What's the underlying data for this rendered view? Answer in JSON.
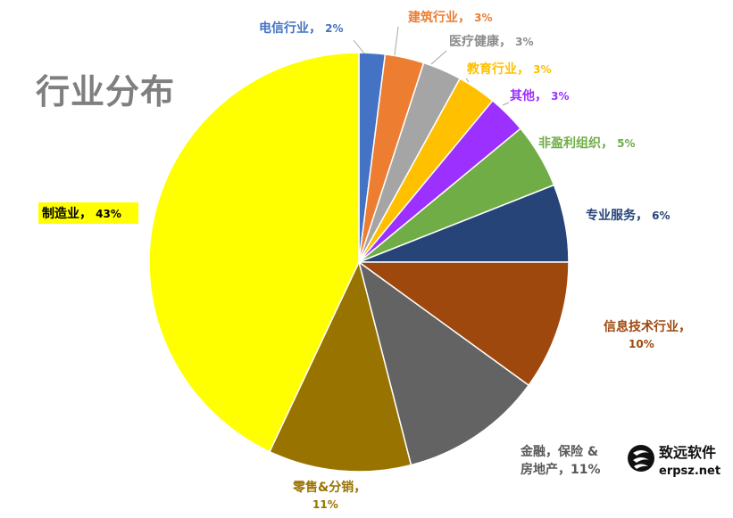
{
  "chart_data": {
    "type": "pie",
    "title": "行业分布",
    "start_angle": 0,
    "direction": "clockwise",
    "slices": [
      {
        "name": "电信行业",
        "value": 2,
        "label": "电信行业，2%",
        "color": "#4472c4"
      },
      {
        "name": "建筑行业",
        "value": 3,
        "label": "建筑行业，3%",
        "color": "#ed7d31"
      },
      {
        "name": "医疗健康",
        "value": 3,
        "label": "医疗健康，3%",
        "color": "#a5a5a5"
      },
      {
        "name": "教育行业",
        "value": 3,
        "label": "教育行业，3%",
        "color": "#ffc000"
      },
      {
        "name": "其他",
        "value": 3,
        "label": "其他，3%",
        "color": "#9b30ff"
      },
      {
        "name": "非盈利组织",
        "value": 5,
        "label": "非盈利组织，5%",
        "color": "#70ad47"
      },
      {
        "name": "专业服务",
        "value": 6,
        "label": "专业服务，6%",
        "color": "#264478"
      },
      {
        "name": "信息技术行业",
        "value": 10,
        "label": "信息技术行业，10%",
        "color": "#9e480e"
      },
      {
        "name": "金融，保险 & 房地产",
        "value": 11,
        "label": "金融，保险 & 房地产，11%",
        "color": "#636363"
      },
      {
        "name": "零售&分销",
        "value": 11,
        "label": "零售&分销，11%",
        "color": "#997300"
      },
      {
        "name": "制造业",
        "value": 43,
        "label": "制造业，43%",
        "color": "#ffff00"
      }
    ]
  },
  "logo": {
    "name": "致远软件",
    "url": "erpsz.net"
  }
}
